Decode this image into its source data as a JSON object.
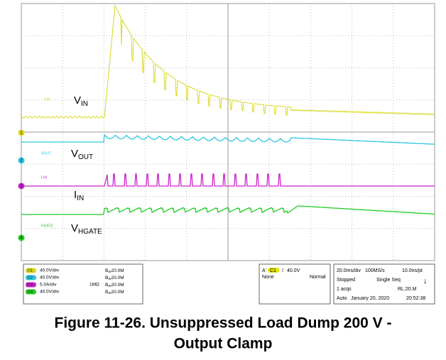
{
  "traces": [
    {
      "marker": "1",
      "tag": "VIN",
      "label": "V",
      "label_sub": "IN"
    },
    {
      "marker": "2",
      "tag": "VOUT",
      "label": "V",
      "label_sub": "OUT"
    },
    {
      "marker": "3",
      "tag": "I-IN",
      "label": "I",
      "label_sub": "IN"
    },
    {
      "marker": "4",
      "tag": "HGATE",
      "label": "V",
      "label_sub": "HGATE"
    }
  ],
  "channels": [
    {
      "id": "C1",
      "scale": "40.0V/div",
      "impedance": "",
      "bw_label": "B",
      "bw_sub": "W",
      "bw": "20.0M"
    },
    {
      "id": "C2",
      "scale": "40.0V/div",
      "impedance": "",
      "bw_label": "B",
      "bw_sub": "W",
      "bw": "20.0M"
    },
    {
      "id": "C3",
      "scale": "5.0A/div",
      "impedance": "1MΩ",
      "bw_label": "B",
      "bw_sub": "W",
      "bw": "20.0M"
    },
    {
      "id": "C4",
      "scale": "40.0V/div",
      "impedance": "",
      "bw_label": "B",
      "bw_sub": "W",
      "bw": "20.0M"
    }
  ],
  "trigger": {
    "name": "A'",
    "source": "C1",
    "slope": "/",
    "level": "40.0V",
    "coupling": "None",
    "mode": "Normal"
  },
  "acquisition": {
    "timebase": "20.0ms/div",
    "rate": "100MS/s",
    "resolution": "10.0ns/pt",
    "state": "Stopped",
    "run_mode": "Single Seq",
    "count": "1 acqs",
    "record_length": "RL:20.M",
    "trigger_mode": "Auto",
    "date": "January 20, 2020",
    "time": "20:52:38"
  },
  "caption": {
    "line1": "Figure 11-26. Unsuppressed Load Dump 200 V -",
    "line2": "Output Clamp"
  }
}
